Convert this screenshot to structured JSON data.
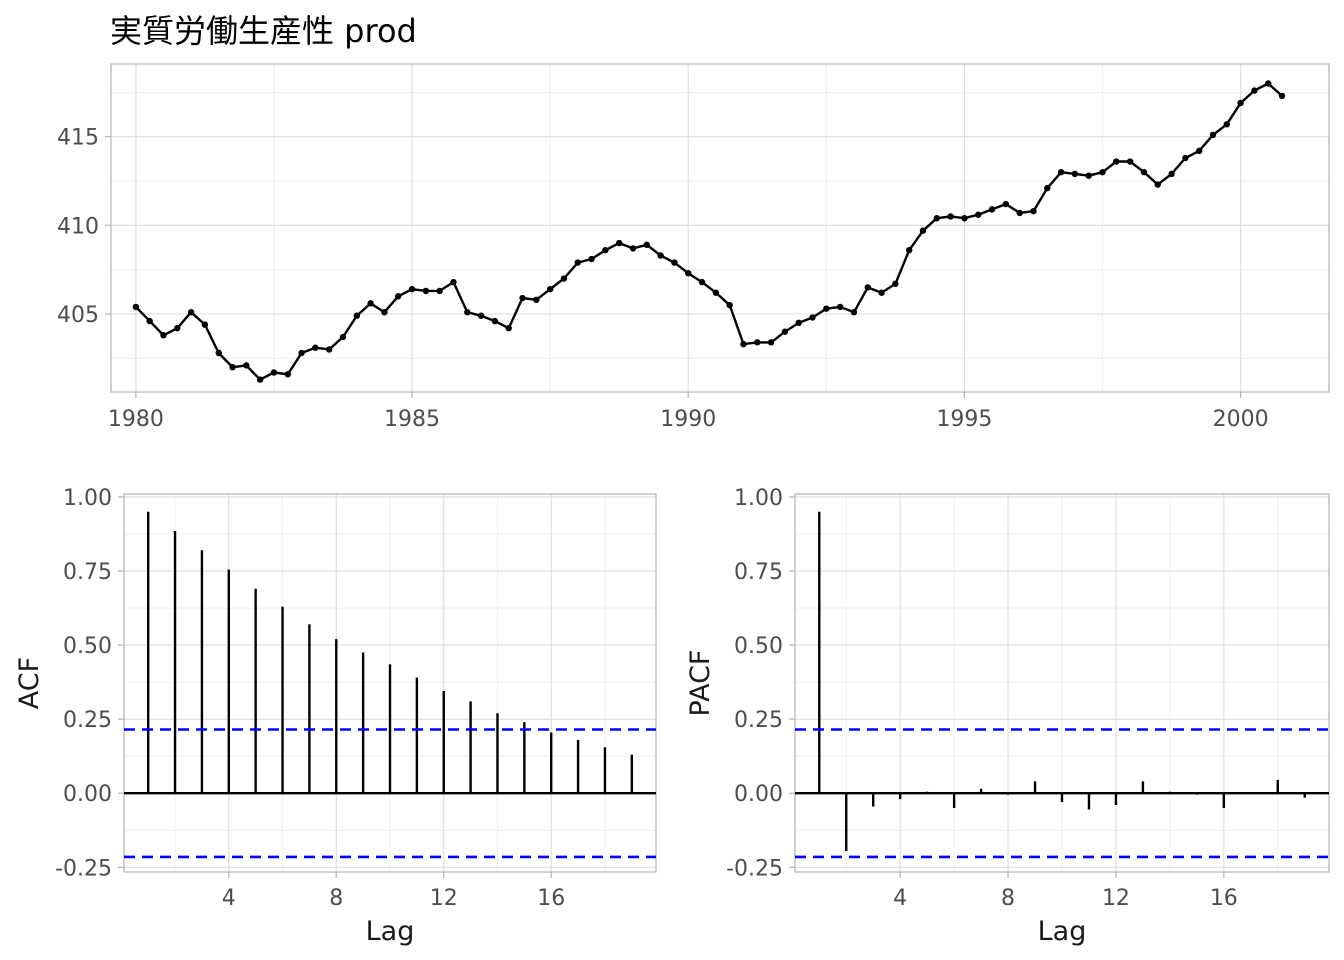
{
  "title": "実質労働生産性 prod",
  "colors": {
    "series": "#000000",
    "ci": "#0000ff",
    "grid": "#dcdcdc",
    "panel_border": "#b3b3b3"
  },
  "chart_data": [
    {
      "type": "line",
      "title": "実質労働生産性 prod",
      "xlabel": "",
      "ylabel": "",
      "xlim": [
        1979.55,
        2001.6
      ],
      "ylim": [
        400.6,
        419.1
      ],
      "xticks": [
        "1980",
        "1985",
        "1990",
        "1995",
        "2000"
      ],
      "yticks": [
        "405",
        "410",
        "415"
      ],
      "grid": true,
      "series": [
        {
          "x": [
            1980.0,
            1980.25,
            1980.5,
            1980.75,
            1981.0,
            1981.25,
            1981.5,
            1981.75,
            1982.0,
            1982.25,
            1982.5,
            1982.75,
            1983.0,
            1983.25,
            1983.5,
            1983.75,
            1984.0,
            1984.25,
            1984.5,
            1984.75,
            1985.0,
            1985.25,
            1985.5,
            1985.75,
            1986.0,
            1986.25,
            1986.5,
            1986.75,
            1987.0,
            1987.25,
            1987.5,
            1987.75,
            1988.0,
            1988.25,
            1988.5,
            1988.75,
            1989.0,
            1989.25,
            1989.5,
            1989.75,
            1990.0,
            1990.25,
            1990.5,
            1990.75,
            1991.0,
            1991.25,
            1991.5,
            1991.75,
            1992.0,
            1992.25,
            1992.5,
            1992.75,
            1993.0,
            1993.25,
            1993.5,
            1993.75,
            1994.0,
            1994.25,
            1994.5,
            1994.75,
            1995.0,
            1995.25,
            1995.5,
            1995.75,
            1996.0,
            1996.25,
            1996.5,
            1996.75,
            1997.0,
            1997.25,
            1997.5,
            1997.75,
            1998.0,
            1998.25,
            1998.5,
            1998.75,
            1999.0,
            1999.25,
            1999.5,
            1999.75,
            2000.0,
            2000.25,
            2000.5,
            2000.75
          ],
          "values": [
            405.4,
            404.6,
            403.8,
            404.2,
            405.1,
            404.4,
            402.8,
            402.0,
            402.1,
            401.3,
            401.7,
            401.6,
            402.8,
            403.1,
            403.0,
            403.7,
            404.9,
            405.6,
            405.1,
            406.0,
            406.4,
            406.3,
            406.3,
            406.8,
            405.1,
            404.9,
            404.6,
            404.2,
            405.9,
            405.8,
            406.4,
            407.0,
            407.9,
            408.1,
            408.6,
            409.0,
            408.7,
            408.9,
            408.3,
            407.9,
            407.3,
            406.8,
            406.2,
            405.5,
            403.3,
            403.4,
            403.4,
            404.0,
            404.5,
            404.8,
            405.3,
            405.4,
            405.1,
            406.5,
            406.2,
            406.7,
            408.6,
            409.7,
            410.4,
            410.5,
            410.4,
            410.6,
            410.9,
            411.2,
            410.7,
            410.8,
            412.1,
            413.0,
            412.9,
            412.8,
            413.0,
            413.6,
            413.6,
            413.0,
            412.3,
            412.9,
            413.8,
            414.2,
            415.1,
            415.7,
            416.9,
            417.6,
            418.0,
            417.3
          ]
        }
      ]
    },
    {
      "type": "bar",
      "ylabel": "ACF",
      "xlabel": "Lag",
      "xlim": [
        0.1,
        19.9
      ],
      "ylim": [
        -0.266,
        1.01
      ],
      "xticks": [
        "4",
        "8",
        "12",
        "16"
      ],
      "yticks": [
        "-0.25",
        "0.00",
        "0.25",
        "0.50",
        "0.75",
        "1.00"
      ],
      "ci": 0.215,
      "grid": true,
      "lags": [
        1,
        2,
        3,
        4,
        5,
        6,
        7,
        8,
        9,
        10,
        11,
        12,
        13,
        14,
        15,
        16,
        17,
        18,
        19
      ],
      "values": [
        0.95,
        0.885,
        0.82,
        0.755,
        0.69,
        0.63,
        0.57,
        0.52,
        0.475,
        0.435,
        0.39,
        0.345,
        0.31,
        0.27,
        0.24,
        0.205,
        0.18,
        0.155,
        0.13
      ]
    },
    {
      "type": "bar",
      "ylabel": "PACF",
      "xlabel": "Lag",
      "xlim": [
        0.1,
        19.9
      ],
      "ylim": [
        -0.266,
        1.01
      ],
      "xticks": [
        "4",
        "8",
        "12",
        "16"
      ],
      "yticks": [
        "-0.25",
        "0.00",
        "0.25",
        "0.50",
        "0.75",
        "1.00"
      ],
      "ci": 0.215,
      "grid": true,
      "lags": [
        1,
        2,
        3,
        4,
        5,
        6,
        7,
        8,
        9,
        10,
        11,
        12,
        13,
        14,
        15,
        16,
        17,
        18,
        19
      ],
      "values": [
        0.95,
        -0.195,
        -0.045,
        -0.02,
        0.005,
        -0.05,
        0.015,
        -0.005,
        0.04,
        -0.03,
        -0.055,
        -0.04,
        0.04,
        0.005,
        -0.005,
        -0.05,
        0.0,
        0.045,
        -0.015
      ]
    }
  ]
}
